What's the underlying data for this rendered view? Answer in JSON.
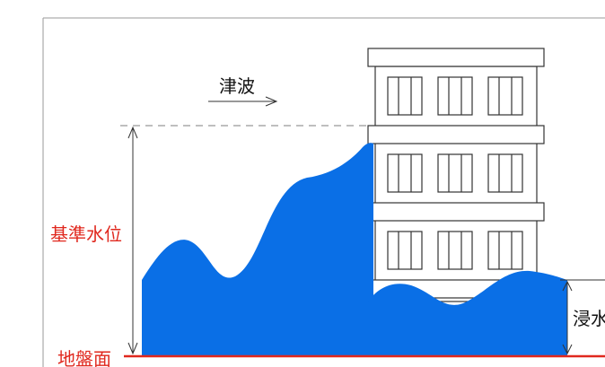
{
  "labels": {
    "tsunami": "津波",
    "reference_water_level": "基準水位",
    "ground_surface": "地盤面",
    "inundation": "浸水"
  },
  "colors": {
    "water": "#0a6fe6",
    "label_red": "#e0281e",
    "ground_line": "#e0281e",
    "outline": "#333333",
    "frame": "#9a9a9a"
  },
  "icons": {
    "tsunami_arrow": "right-arrow-icon"
  }
}
